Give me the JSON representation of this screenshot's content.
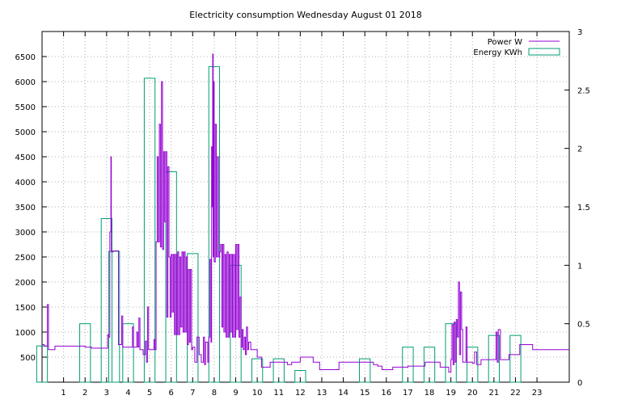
{
  "chart_data": {
    "type": "bar+line",
    "title": "Electricity consumption Wednesday August 01 2018",
    "xlabel": "",
    "ylabel": "",
    "x_ticks": [
      "1",
      "2",
      "3",
      "4",
      "5",
      "6",
      "7",
      "8",
      "9",
      "10",
      "11",
      "12",
      "13",
      "14",
      "15",
      "16",
      "17",
      "18",
      "19",
      "20",
      "21",
      "22",
      "23"
    ],
    "xlim": [
      0,
      24.5
    ],
    "ylim_left": [
      0,
      7000
    ],
    "ylim_right": [
      0,
      3
    ],
    "y_ticks_left": [
      "500",
      "1000",
      "1500",
      "2000",
      "2500",
      "3000",
      "3500",
      "4000",
      "4500",
      "5000",
      "5500",
      "6000",
      "6500"
    ],
    "y_ticks_right": [
      "0",
      "0.5",
      "1",
      "1.5",
      "2",
      "2.5",
      "3"
    ],
    "grid": true,
    "legend_position": "top-right",
    "legend": [
      {
        "label": "Power W",
        "color": "#9400d3",
        "kind": "line"
      },
      {
        "label": "Energy KWh",
        "color": "#009e73",
        "kind": "box"
      }
    ],
    "series": [
      {
        "name": "Energy KWh",
        "axis": "right",
        "color": "#009e73",
        "bars": [
          {
            "x": 0,
            "value": 0.31
          },
          {
            "x": 1,
            "value": 0.0
          },
          {
            "x": 2,
            "value": 0.5
          },
          {
            "x": 3,
            "value": 1.4
          },
          {
            "x": 3.35,
            "value": 1.12
          },
          {
            "x": 4,
            "value": 0.5
          },
          {
            "x": 5,
            "value": 2.6
          },
          {
            "x": 6,
            "value": 1.8
          },
          {
            "x": 7,
            "value": 1.1
          },
          {
            "x": 8,
            "value": 2.7
          },
          {
            "x": 9,
            "value": 1.0
          },
          {
            "x": 10,
            "value": 0.2
          },
          {
            "x": 11,
            "value": 0.2
          },
          {
            "x": 12,
            "value": 0.1
          },
          {
            "x": 15,
            "value": 0.2
          },
          {
            "x": 17,
            "value": 0.3
          },
          {
            "x": 18,
            "value": 0.3
          },
          {
            "x": 19,
            "value": 0.5
          },
          {
            "x": 20,
            "value": 0.3
          },
          {
            "x": 21,
            "value": 0.4
          },
          {
            "x": 22,
            "value": 0.4
          }
        ]
      },
      {
        "name": "Power W",
        "axis": "left",
        "color": "#9400d3",
        "points": [
          [
            0.0,
            750
          ],
          [
            0.1,
            720
          ],
          [
            0.25,
            1550
          ],
          [
            0.3,
            650
          ],
          [
            0.5,
            650
          ],
          [
            0.6,
            720
          ],
          [
            1.5,
            720
          ],
          [
            2.0,
            700
          ],
          [
            2.3,
            680
          ],
          [
            2.5,
            680
          ],
          [
            3.0,
            680
          ],
          [
            3.05,
            950
          ],
          [
            3.1,
            900
          ],
          [
            3.15,
            3000
          ],
          [
            3.2,
            4500
          ],
          [
            3.22,
            2600
          ],
          [
            3.3,
            2620
          ],
          [
            3.5,
            2620
          ],
          [
            3.55,
            750
          ],
          [
            3.6,
            750
          ],
          [
            3.7,
            1320
          ],
          [
            3.75,
            700
          ],
          [
            4.0,
            700
          ],
          [
            4.2,
            1100
          ],
          [
            4.25,
            700
          ],
          [
            4.4,
            1000
          ],
          [
            4.45,
            700
          ],
          [
            4.5,
            1280
          ],
          [
            4.55,
            650
          ],
          [
            4.7,
            550
          ],
          [
            4.8,
            820
          ],
          [
            4.85,
            400
          ],
          [
            4.9,
            1500
          ],
          [
            4.95,
            650
          ],
          [
            5.1,
            650
          ],
          [
            5.2,
            850
          ],
          [
            5.25,
            650
          ],
          [
            5.3,
            2800
          ],
          [
            5.35,
            4500
          ],
          [
            5.4,
            2800
          ],
          [
            5.45,
            5150
          ],
          [
            5.5,
            2700
          ],
          [
            5.55,
            6000
          ],
          [
            5.6,
            2650
          ],
          [
            5.65,
            4600
          ],
          [
            5.7,
            3200
          ],
          [
            5.75,
            4600
          ],
          [
            5.8,
            1300
          ],
          [
            5.85,
            4300
          ],
          [
            5.9,
            2500
          ],
          [
            5.95,
            1300
          ],
          [
            6.0,
            2550
          ],
          [
            6.05,
            1400
          ],
          [
            6.1,
            2550
          ],
          [
            6.15,
            950
          ],
          [
            6.2,
            2550
          ],
          [
            6.25,
            950
          ],
          [
            6.3,
            2600
          ],
          [
            6.35,
            950
          ],
          [
            6.4,
            2500
          ],
          [
            6.45,
            1100
          ],
          [
            6.5,
            2600
          ],
          [
            6.55,
            1000
          ],
          [
            6.6,
            2600
          ],
          [
            6.65,
            1000
          ],
          [
            6.7,
            2500
          ],
          [
            6.75,
            750
          ],
          [
            6.8,
            2250
          ],
          [
            6.85,
            800
          ],
          [
            6.9,
            2250
          ],
          [
            6.95,
            650
          ],
          [
            7.0,
            700
          ],
          [
            7.1,
            400
          ],
          [
            7.2,
            900
          ],
          [
            7.3,
            550
          ],
          [
            7.4,
            400
          ],
          [
            7.5,
            900
          ],
          [
            7.55,
            350
          ],
          [
            7.6,
            800
          ],
          [
            7.7,
            400
          ],
          [
            7.75,
            900
          ],
          [
            7.8,
            2450
          ],
          [
            7.85,
            800
          ],
          [
            7.88,
            4700
          ],
          [
            7.9,
            3500
          ],
          [
            7.93,
            6550
          ],
          [
            7.95,
            2500
          ],
          [
            7.98,
            6000
          ],
          [
            8.0,
            2400
          ],
          [
            8.05,
            5150
          ],
          [
            8.1,
            2500
          ],
          [
            8.15,
            4500
          ],
          [
            8.2,
            2500
          ],
          [
            8.25,
            2600
          ],
          [
            8.3,
            2750
          ],
          [
            8.35,
            1100
          ],
          [
            8.4,
            2750
          ],
          [
            8.45,
            1000
          ],
          [
            8.5,
            2550
          ],
          [
            8.55,
            900
          ],
          [
            8.6,
            2600
          ],
          [
            8.65,
            900
          ],
          [
            8.7,
            2550
          ],
          [
            8.75,
            1000
          ],
          [
            8.8,
            2550
          ],
          [
            8.85,
            900
          ],
          [
            8.9,
            2550
          ],
          [
            8.95,
            900
          ],
          [
            9.0,
            2750
          ],
          [
            9.05,
            1050
          ],
          [
            9.1,
            2750
          ],
          [
            9.15,
            900
          ],
          [
            9.2,
            1700
          ],
          [
            9.25,
            700
          ],
          [
            9.3,
            1050
          ],
          [
            9.35,
            650
          ],
          [
            9.4,
            900
          ],
          [
            9.45,
            550
          ],
          [
            9.5,
            1100
          ],
          [
            9.55,
            650
          ],
          [
            9.6,
            800
          ],
          [
            9.7,
            650
          ],
          [
            10.0,
            500
          ],
          [
            10.2,
            300
          ],
          [
            10.3,
            300
          ],
          [
            10.5,
            300
          ],
          [
            10.6,
            400
          ],
          [
            10.9,
            400
          ],
          [
            11.0,
            400
          ],
          [
            11.3,
            400
          ],
          [
            11.4,
            350
          ],
          [
            11.6,
            400
          ],
          [
            11.8,
            400
          ],
          [
            12.0,
            500
          ],
          [
            12.1,
            500
          ],
          [
            12.5,
            500
          ],
          [
            12.6,
            400
          ],
          [
            12.8,
            400
          ],
          [
            12.9,
            250
          ],
          [
            13.2,
            250
          ],
          [
            13.5,
            250
          ],
          [
            13.8,
            400
          ],
          [
            14.5,
            400
          ],
          [
            15.0,
            400
          ],
          [
            15.3,
            400
          ],
          [
            15.4,
            350
          ],
          [
            15.6,
            320
          ],
          [
            15.8,
            250
          ],
          [
            16.0,
            250
          ],
          [
            16.3,
            300
          ],
          [
            16.7,
            300
          ],
          [
            17.0,
            320
          ],
          [
            17.5,
            320
          ],
          [
            17.8,
            400
          ],
          [
            18.3,
            400
          ],
          [
            18.5,
            300
          ],
          [
            18.7,
            300
          ],
          [
            18.9,
            200
          ],
          [
            19.0,
            450
          ],
          [
            19.05,
            1150
          ],
          [
            19.1,
            350
          ],
          [
            19.15,
            1200
          ],
          [
            19.2,
            400
          ],
          [
            19.25,
            1250
          ],
          [
            19.3,
            900
          ],
          [
            19.35,
            2000
          ],
          [
            19.4,
            550
          ],
          [
            19.45,
            1800
          ],
          [
            19.5,
            1050
          ],
          [
            19.55,
            400
          ],
          [
            19.7,
            1100
          ],
          [
            19.75,
            400
          ],
          [
            19.9,
            400
          ],
          [
            20.0,
            380
          ],
          [
            20.1,
            600
          ],
          [
            20.2,
            350
          ],
          [
            20.4,
            450
          ],
          [
            20.6,
            450
          ],
          [
            20.8,
            450
          ],
          [
            21.0,
            450
          ],
          [
            21.1,
            1000
          ],
          [
            21.15,
            400
          ],
          [
            21.2,
            1050
          ],
          [
            21.3,
            450
          ],
          [
            21.5,
            450
          ],
          [
            21.7,
            550
          ],
          [
            22.0,
            550
          ],
          [
            22.2,
            750
          ],
          [
            22.6,
            750
          ],
          [
            22.8,
            650
          ],
          [
            23.0,
            650
          ],
          [
            23.3,
            650
          ],
          [
            23.6,
            650
          ],
          [
            24.0,
            650
          ],
          [
            24.5,
            650
          ]
        ]
      }
    ]
  }
}
